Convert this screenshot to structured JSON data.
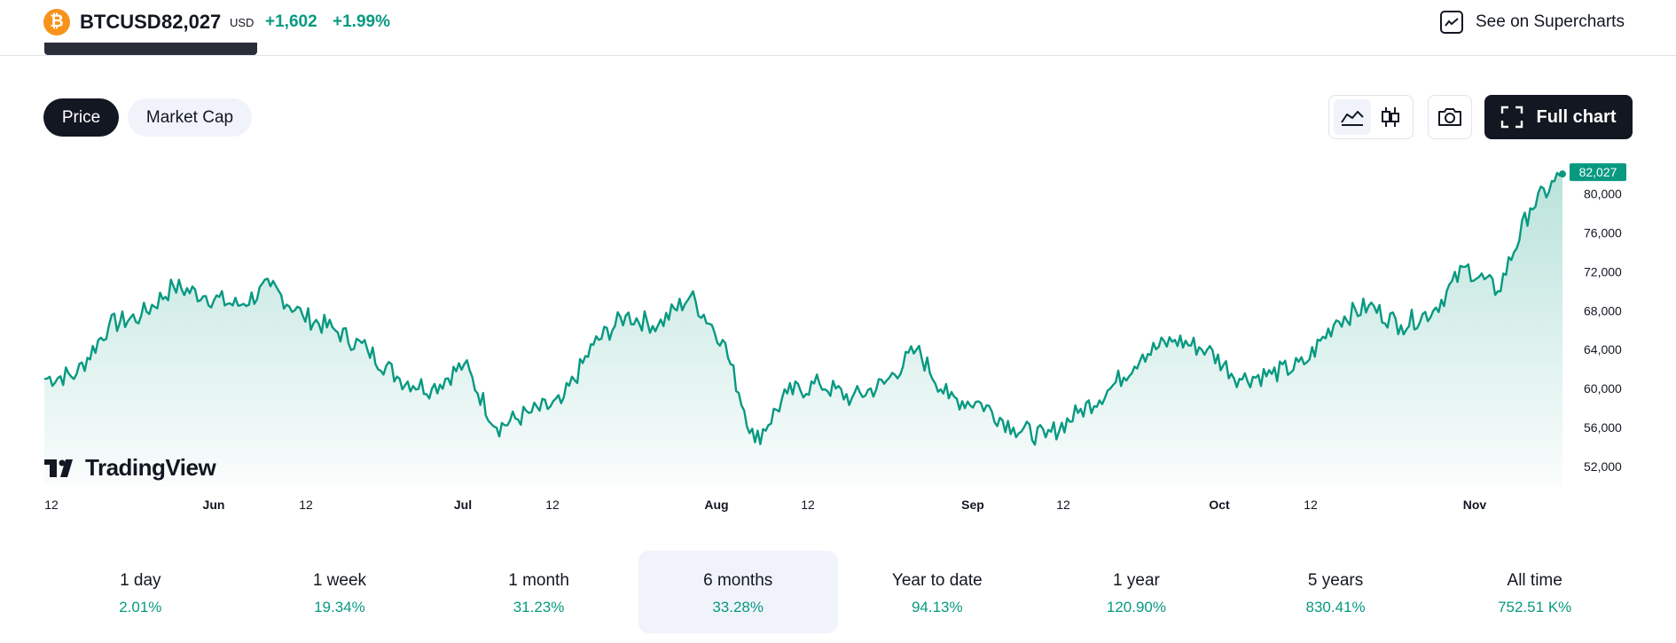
{
  "header": {
    "coin_icon": "bitcoin-icon",
    "coin_glyph": "₿",
    "symbol": "BTCUSD",
    "price": "82,027",
    "currency": "USD",
    "change": "+1,602",
    "change_percent": "+1.99%",
    "supercharts_label": "See on Supercharts"
  },
  "tabs": [
    {
      "label": "Price",
      "active": true
    },
    {
      "label": "Market Cap",
      "active": false
    }
  ],
  "toolbar": {
    "full_chart_label": "Full chart"
  },
  "chart_data": {
    "type": "area",
    "last_value_label": "82,027",
    "last_value": 82027,
    "ylim": [
      50000,
      83500
    ],
    "y_ticks": [
      52000,
      56000,
      60000,
      64000,
      68000,
      72000,
      76000,
      80000
    ],
    "y_tick_labels": [
      "52,000",
      "56,000",
      "60,000",
      "64,000",
      "68,000",
      "72,000",
      "76,000",
      "80,000"
    ],
    "x_tick_labels": [
      "12",
      "Jun",
      "12",
      "Jul",
      "12",
      "Aug",
      "12",
      "Sep",
      "12",
      "Oct",
      "12",
      "Nov"
    ],
    "x": [
      "May 12",
      "May 16",
      "May 20",
      "May 24",
      "May 28",
      "Jun 1",
      "Jun 5",
      "Jun 9",
      "Jun 13",
      "Jun 17",
      "Jun 21",
      "Jun 25",
      "Jun 29",
      "Jul 3",
      "Jul 7",
      "Jul 11",
      "Jul 15",
      "Jul 19",
      "Jul 23",
      "Jul 27",
      "Jul 31",
      "Aug 3",
      "Aug 5",
      "Aug 8",
      "Aug 12",
      "Aug 16",
      "Aug 20",
      "Aug 25",
      "Aug 30",
      "Sep 3",
      "Sep 6",
      "Sep 10",
      "Sep 14",
      "Sep 18",
      "Sep 22",
      "Sep 27",
      "Oct 1",
      "Oct 4",
      "Oct 8",
      "Oct 12",
      "Oct 16",
      "Oct 21",
      "Oct 25",
      "Oct 29",
      "Nov 2",
      "Nov 6",
      "Nov 10",
      "Nov 12"
    ],
    "values": [
      61000,
      61500,
      66500,
      67500,
      70500,
      69500,
      68500,
      70500,
      67500,
      66000,
      64000,
      61000,
      60000,
      62500,
      56000,
      57500,
      58500,
      64500,
      67500,
      66500,
      69500,
      65000,
      54500,
      59500,
      60500,
      59000,
      60500,
      64000,
      59000,
      58500,
      56000,
      55000,
      57500,
      60000,
      63500,
      65000,
      64000,
      61000,
      61500,
      62500,
      67000,
      68500,
      66500,
      68000,
      72500,
      70000,
      78500,
      82027
    ],
    "grid": false,
    "legend": "none"
  },
  "periods": [
    {
      "label": "1 day",
      "value": "2.01%",
      "active": false
    },
    {
      "label": "1 week",
      "value": "19.34%",
      "active": false
    },
    {
      "label": "1 month",
      "value": "31.23%",
      "active": false
    },
    {
      "label": "6 months",
      "value": "33.28%",
      "active": true
    },
    {
      "label": "Year to date",
      "value": "94.13%",
      "active": false
    },
    {
      "label": "1 year",
      "value": "120.90%",
      "active": false
    },
    {
      "label": "5 years",
      "value": "830.41%",
      "active": false
    },
    {
      "label": "All time",
      "value": "752.51 K%",
      "active": false
    }
  ],
  "watermark": "TradingView",
  "colors": {
    "accent": "#089981",
    "dark": "#131722",
    "bitcoin": "#f7931a",
    "pill_bg": "#f0f3fa"
  }
}
